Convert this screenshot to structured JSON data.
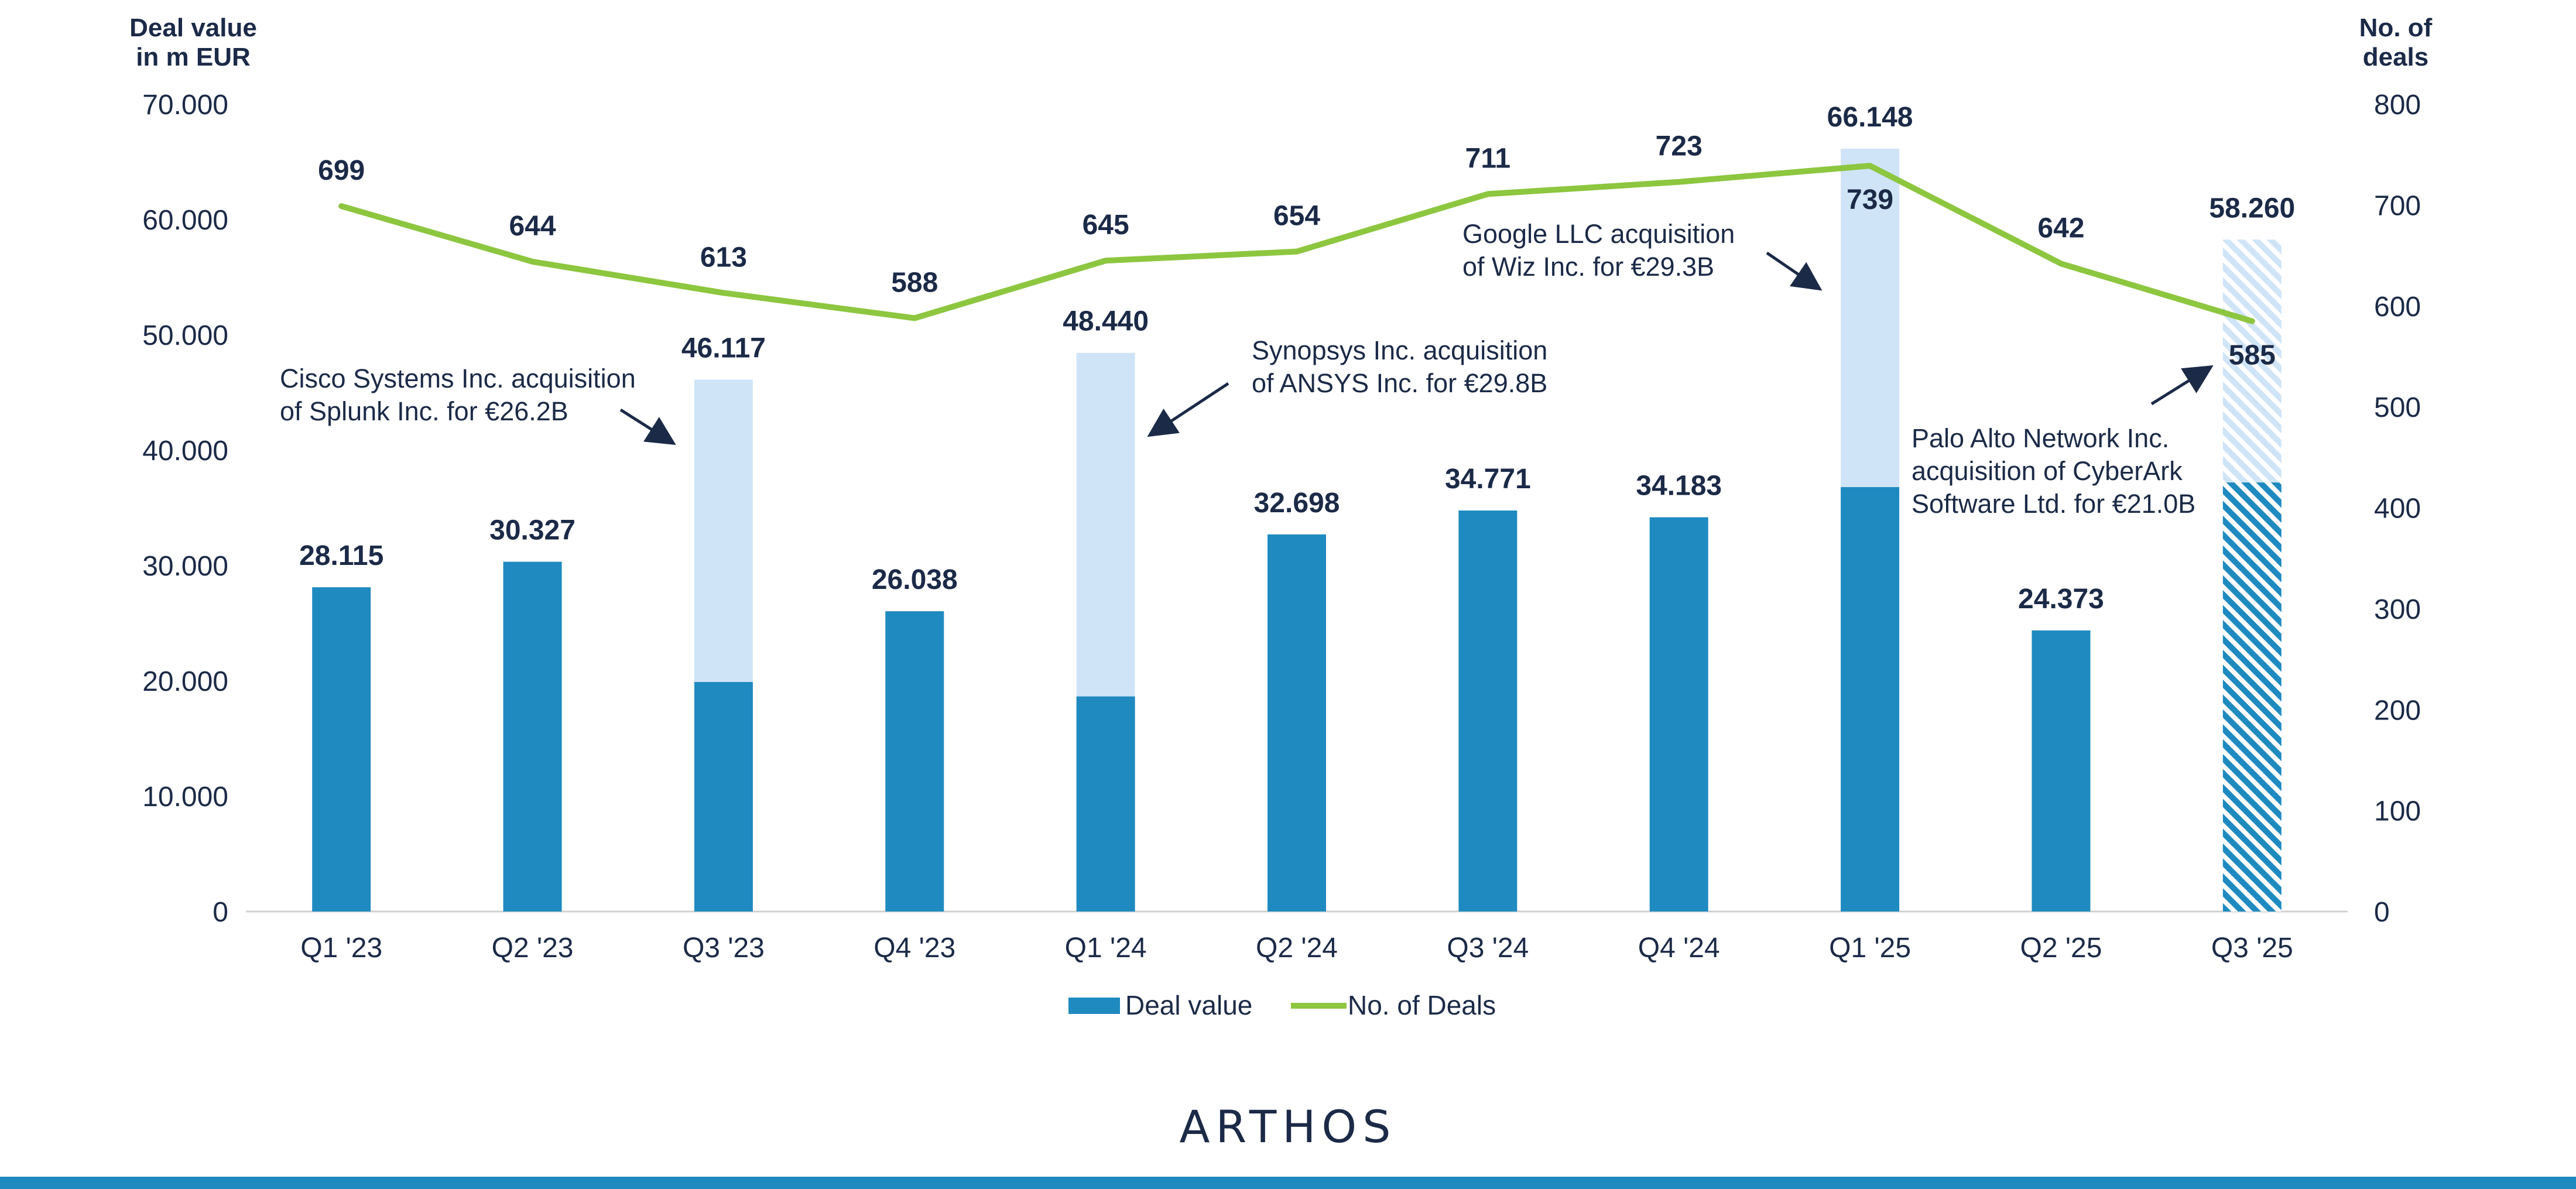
{
  "chart_data": {
    "type": "bar+line",
    "categories": [
      "Q1 '23",
      "Q2 '23",
      "Q3 '23",
      "Q4 '23",
      "Q1 '24",
      "Q2 '24",
      "Q3 '24",
      "Q4 '24",
      "Q1 '25",
      "Q2 '25",
      "Q3 '25"
    ],
    "ylabel_left": [
      "Deal value",
      "in m EUR"
    ],
    "ylabel_right": [
      "No. of",
      "deals"
    ],
    "ylim_left": [
      0,
      70000
    ],
    "ylim_right": [
      0,
      800
    ],
    "yticks_left": [
      {
        "value": 0,
        "label": "0"
      },
      {
        "value": 10000,
        "label": "10.000"
      },
      {
        "value": 20000,
        "label": "20.000"
      },
      {
        "value": 30000,
        "label": "30.000"
      },
      {
        "value": 40000,
        "label": "40.000"
      },
      {
        "value": 50000,
        "label": "50.000"
      },
      {
        "value": 60000,
        "label": "60.000"
      },
      {
        "value": 70000,
        "label": "70.000"
      }
    ],
    "yticks_right": [
      {
        "value": 0,
        "label": "0"
      },
      {
        "value": 100,
        "label": "100"
      },
      {
        "value": 200,
        "label": "200"
      },
      {
        "value": 300,
        "label": "300"
      },
      {
        "value": 400,
        "label": "400"
      },
      {
        "value": 500,
        "label": "500"
      },
      {
        "value": 600,
        "label": "600"
      },
      {
        "value": 700,
        "label": "700"
      },
      {
        "value": 800,
        "label": "800"
      }
    ],
    "series": [
      {
        "name": "Deal value",
        "axis": "left",
        "values": [
          28115,
          30327,
          46117,
          26038,
          48440,
          32698,
          34771,
          34183,
          66148,
          24373,
          58260
        ],
        "labels": [
          "28.115",
          "30.327",
          "46.117",
          "26.038",
          "48.440",
          "32.698",
          "34.771",
          "34.183",
          "66.148",
          "24.373",
          "58.260"
        ],
        "base_values": [
          28115,
          30327,
          19900,
          26038,
          18650,
          32698,
          34771,
          34183,
          36800,
          24373,
          37200
        ],
        "projected_index": 10
      },
      {
        "name": "No. of Deals",
        "axis": "right",
        "values": [
          699,
          644,
          613,
          588,
          645,
          654,
          711,
          723,
          739,
          642,
          585
        ],
        "labels": [
          "699",
          "644",
          "613",
          "588",
          "645",
          "654",
          "711",
          "723",
          "739",
          "642",
          "585"
        ]
      }
    ],
    "annotations": [
      {
        "category_index": 2,
        "lines": [
          "Cisco Systems Inc. acquisition",
          "of Splunk Inc. for €26.2B"
        ]
      },
      {
        "category_index": 4,
        "lines": [
          "Synopsys Inc. acquisition",
          "of ANSYS Inc. for €29.8B"
        ]
      },
      {
        "category_index": 8,
        "lines": [
          "Google LLC acquisition",
          "of Wiz Inc. for €29.3B"
        ]
      },
      {
        "category_index": 10,
        "lines": [
          "Palo Alto Network Inc.",
          "acquisition of CyberArk",
          "Software Ltd. for €21.0B"
        ]
      }
    ],
    "legend_position": "bottom-center",
    "grid": false
  },
  "colors": {
    "bar": "#1f8ac0",
    "bar_light": "#cfe4f7",
    "line": "#8dc63f",
    "text": "#1b2a47",
    "axis": "#d0d0d0",
    "bottom_bar": "#1f8ac0"
  },
  "brand": "ARTHOS"
}
